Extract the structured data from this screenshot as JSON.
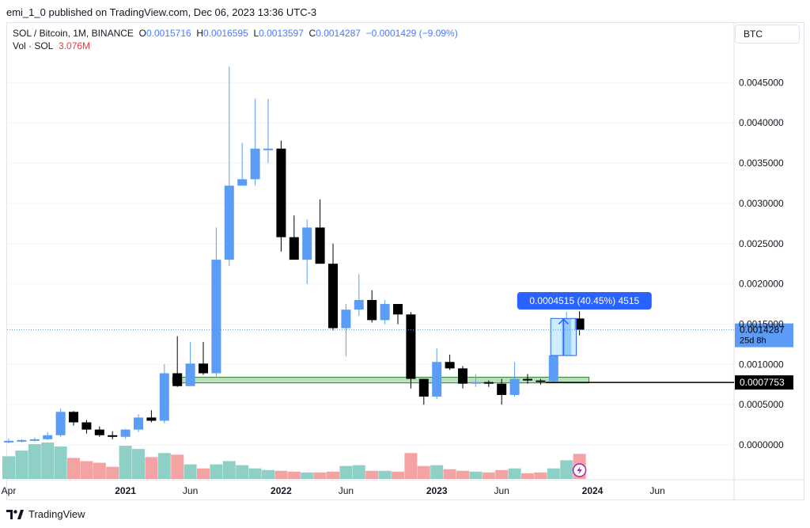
{
  "publish": {
    "text": "emi_1_0 published on TradingView.com, Dec 06, 2023 13:36 UTC-3"
  },
  "legend": {
    "symbol": "SOL / Bitcoin, 1M, BINANCE",
    "o_label": "O",
    "o": "0.0015716",
    "h_label": "H",
    "h": "0.0016595",
    "l_label": "L",
    "l": "0.0013597",
    "c_label": "C",
    "c": "0.0014287",
    "change": "−0.0001429 (−9.09%)",
    "vol_label": "Vol · SOL",
    "vol_value": "3.076M"
  },
  "currency_button": "BTC",
  "footer": {
    "brand": "TradingView"
  },
  "colors": {
    "up": "#5b9cf6",
    "down": "#000000",
    "vol_up": "#8ed0c6",
    "vol_down": "#f4a3a3",
    "accent": "#2962ff",
    "zone": "#a5d6a7"
  },
  "chart_data": {
    "type": "candlestick",
    "title": "SOL / Bitcoin, 1M, BINANCE",
    "price_axis_ticks": [
      "0.0045000",
      "0.0040000",
      "0.0035000",
      "0.0030000",
      "0.0025000",
      "0.0020000",
      "0.0015000",
      "0.0010000",
      "0.0005000",
      "0.0000000"
    ],
    "time_axis_labels": [
      {
        "label": "Apr",
        "date": "2020-04"
      },
      {
        "label": "2021",
        "date": "2021-01"
      },
      {
        "label": "Jun",
        "date": "2021-06"
      },
      {
        "label": "2022",
        "date": "2022-01"
      },
      {
        "label": "Jun",
        "date": "2022-06"
      },
      {
        "label": "2023",
        "date": "2023-01"
      },
      {
        "label": "Jun",
        "date": "2023-06"
      },
      {
        "label": "2024",
        "date": "2024-01"
      },
      {
        "label": "Jun",
        "date": "2024-06"
      }
    ],
    "ylim": [
      -0.0004,
      0.005
    ],
    "candles": [
      {
        "date": "2020-04",
        "o": 5e-05,
        "h": 8e-05,
        "l": 2e-05,
        "c": 5e-05,
        "v": 2.8
      },
      {
        "date": "2020-05",
        "o": 5e-05,
        "h": 7e-05,
        "l": 3e-05,
        "c": 6e-05,
        "v": 3.5
      },
      {
        "date": "2020-06",
        "o": 6e-05,
        "h": 9e-05,
        "l": 4e-05,
        "c": 7e-05,
        "v": 4.3
      },
      {
        "date": "2020-07",
        "o": 7e-05,
        "h": 0.00016,
        "l": 6e-05,
        "c": 0.00012,
        "v": 4.5
      },
      {
        "date": "2020-08",
        "o": 0.00012,
        "h": 0.00045,
        "l": 0.0001,
        "c": 0.00041,
        "v": 4.0
      },
      {
        "date": "2020-09",
        "o": 0.00041,
        "h": 0.00042,
        "l": 0.00024,
        "c": 0.00028,
        "v": 2.6
      },
      {
        "date": "2020-10",
        "o": 0.00028,
        "h": 0.00031,
        "l": 0.00014,
        "c": 0.00019,
        "v": 2.2
      },
      {
        "date": "2020-11",
        "o": 0.00019,
        "h": 0.00023,
        "l": 0.0001,
        "c": 0.00012,
        "v": 2.0
      },
      {
        "date": "2020-12",
        "o": 0.00012,
        "h": 0.00017,
        "l": 7e-05,
        "c": 0.0001,
        "v": 1.5
      },
      {
        "date": "2021-01",
        "o": 0.0001,
        "h": 0.0002,
        "l": 8e-05,
        "c": 0.00019,
        "v": 4.1
      },
      {
        "date": "2021-02",
        "o": 0.00019,
        "h": 0.00038,
        "l": 0.00016,
        "c": 0.00034,
        "v": 3.7
      },
      {
        "date": "2021-03",
        "o": 0.00034,
        "h": 0.00043,
        "l": 0.00028,
        "c": 0.0003,
        "v": 2.7
      },
      {
        "date": "2021-04",
        "o": 0.0003,
        "h": 0.001,
        "l": 0.00027,
        "c": 0.00089,
        "v": 3.2
      },
      {
        "date": "2021-05",
        "o": 0.00089,
        "h": 0.00135,
        "l": 0.00072,
        "c": 0.00073,
        "v": 3.0
      },
      {
        "date": "2021-06",
        "o": 0.00073,
        "h": 0.00128,
        "l": 0.00076,
        "c": 0.00101,
        "v": 1.8
      },
      {
        "date": "2021-07",
        "o": 0.00101,
        "h": 0.00128,
        "l": 0.00087,
        "c": 0.00089,
        "v": 1.3
      },
      {
        "date": "2021-08",
        "o": 0.00089,
        "h": 0.0027,
        "l": 0.00085,
        "c": 0.0023,
        "v": 1.8
      },
      {
        "date": "2021-09",
        "o": 0.0023,
        "h": 0.0047,
        "l": 0.00222,
        "c": 0.00322,
        "v": 2.2
      },
      {
        "date": "2021-10",
        "o": 0.00322,
        "h": 0.00375,
        "l": 0.00322,
        "c": 0.0033,
        "v": 1.7
      },
      {
        "date": "2021-11",
        "o": 0.0033,
        "h": 0.0043,
        "l": 0.00322,
        "c": 0.00368,
        "v": 1.3
      },
      {
        "date": "2021-12",
        "o": 0.00368,
        "h": 0.0043,
        "l": 0.0035,
        "c": 0.00368,
        "v": 1.1
      },
      {
        "date": "2022-01",
        "o": 0.00368,
        "h": 0.00378,
        "l": 0.0024,
        "c": 0.00258,
        "v": 1.0
      },
      {
        "date": "2022-02",
        "o": 0.00258,
        "h": 0.00285,
        "l": 0.0023,
        "c": 0.0023,
        "v": 0.9
      },
      {
        "date": "2022-03",
        "o": 0.0023,
        "h": 0.0028,
        "l": 0.002,
        "c": 0.0027,
        "v": 0.8
      },
      {
        "date": "2022-04",
        "o": 0.0027,
        "h": 0.00305,
        "l": 0.00225,
        "c": 0.00225,
        "v": 0.8
      },
      {
        "date": "2022-05",
        "o": 0.00225,
        "h": 0.0025,
        "l": 0.00142,
        "c": 0.00145,
        "v": 0.9
      },
      {
        "date": "2022-06",
        "o": 0.00145,
        "h": 0.00175,
        "l": 0.0011,
        "c": 0.00168,
        "v": 1.6
      },
      {
        "date": "2022-07",
        "o": 0.00168,
        "h": 0.00212,
        "l": 0.0016,
        "c": 0.0018,
        "v": 1.7
      },
      {
        "date": "2022-08",
        "o": 0.0018,
        "h": 0.00192,
        "l": 0.00152,
        "c": 0.00155,
        "v": 1.0
      },
      {
        "date": "2022-09",
        "o": 0.00155,
        "h": 0.0018,
        "l": 0.0015,
        "c": 0.00175,
        "v": 1.0
      },
      {
        "date": "2022-10",
        "o": 0.00175,
        "h": 0.00175,
        "l": 0.0015,
        "c": 0.00162,
        "v": 0.9
      },
      {
        "date": "2022-11",
        "o": 0.00162,
        "h": 0.00165,
        "l": 0.0007,
        "c": 0.00082,
        "v": 3.2
      },
      {
        "date": "2022-12",
        "o": 0.00082,
        "h": 0.00082,
        "l": 0.0005,
        "c": 0.0006,
        "v": 1.6
      },
      {
        "date": "2023-01",
        "o": 0.0006,
        "h": 0.0012,
        "l": 0.00057,
        "c": 0.00103,
        "v": 1.7
      },
      {
        "date": "2023-02",
        "o": 0.00103,
        "h": 0.00112,
        "l": 0.00093,
        "c": 0.00095,
        "v": 1.2
      },
      {
        "date": "2023-03",
        "o": 0.00095,
        "h": 0.00098,
        "l": 0.0007,
        "c": 0.00076,
        "v": 1.0
      },
      {
        "date": "2023-04",
        "o": 0.00076,
        "h": 0.00088,
        "l": 0.00072,
        "c": 0.00078,
        "v": 0.9
      },
      {
        "date": "2023-05",
        "o": 0.00078,
        "h": 0.0008,
        "l": 0.00072,
        "c": 0.00076,
        "v": 0.8
      },
      {
        "date": "2023-06",
        "o": 0.00076,
        "h": 0.00082,
        "l": 0.0005,
        "c": 0.00062,
        "v": 1.1
      },
      {
        "date": "2023-07",
        "o": 0.00062,
        "h": 0.00103,
        "l": 0.0006,
        "c": 0.00082,
        "v": 1.3
      },
      {
        "date": "2023-08",
        "o": 0.00082,
        "h": 0.00088,
        "l": 0.00076,
        "c": 0.0008,
        "v": 0.7
      },
      {
        "date": "2023-09",
        "o": 0.0008,
        "h": 0.00082,
        "l": 0.00075,
        "c": 0.00079,
        "v": 0.8
      },
      {
        "date": "2023-10",
        "o": 0.00079,
        "h": 0.00112,
        "l": 0.00078,
        "c": 0.00111,
        "v": 1.3
      },
      {
        "date": "2023-11",
        "o": 0.00111,
        "h": 0.00165,
        "l": 0.0011,
        "c": 0.00157,
        "v": 2.3
      },
      {
        "date": "2023-12",
        "o": 0.00157,
        "h": 0.00166,
        "l": 0.00136,
        "c": 0.00143,
        "v": 3.1
      }
    ],
    "current_price_label": "0.0014287",
    "countdown_label": "25d 8h",
    "horizontal_line_label": "0.0007753",
    "horizontal_line_value": 0.0007753,
    "support_zone": {
      "from_date": "2021-05",
      "to_date": "2023-12",
      "low": 0.00077,
      "high": 0.00084
    },
    "measure": {
      "label": "0.0004515 (40.45%) 4515",
      "from_date": "2023-11",
      "to_date": "2023-12",
      "low": 0.00111,
      "high": 0.00157
    }
  }
}
